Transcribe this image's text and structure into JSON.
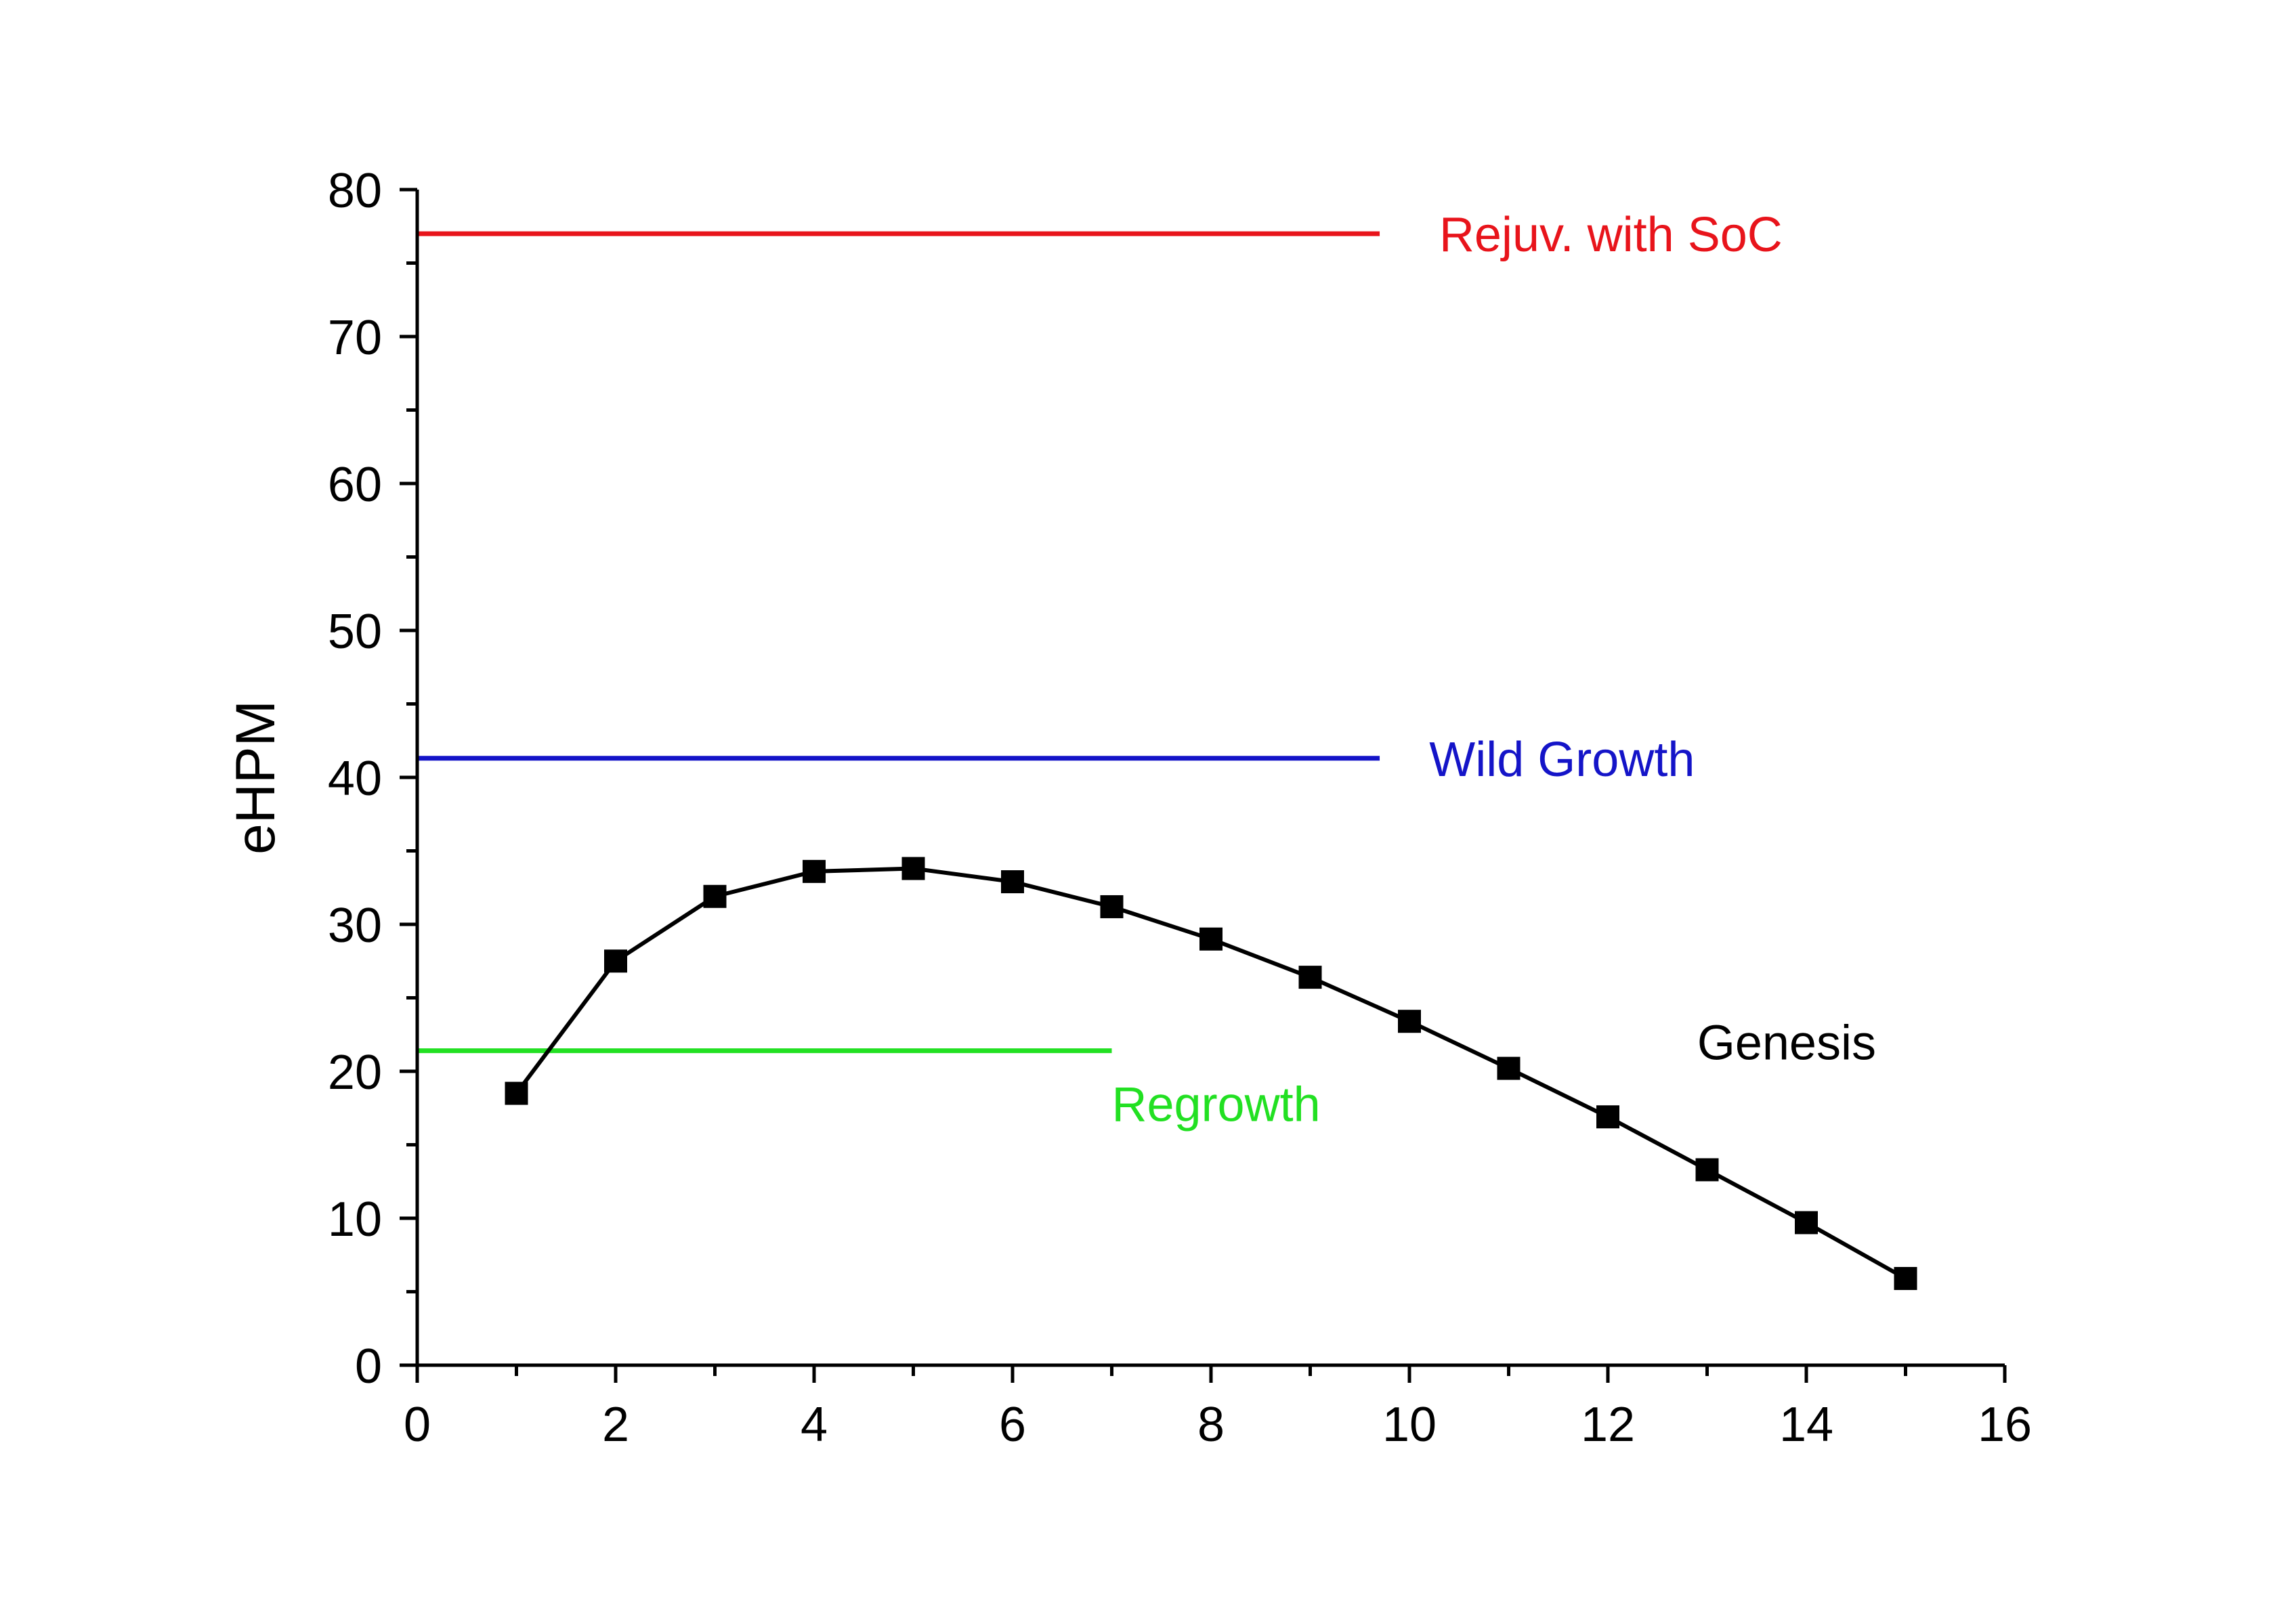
{
  "chart_data": {
    "type": "line",
    "title": "",
    "xlabel": "",
    "ylabel": "eHPM",
    "xlim": [
      0,
      16
    ],
    "ylim": [
      0,
      80
    ],
    "x_ticks": [
      0,
      2,
      4,
      6,
      8,
      10,
      12,
      14,
      16
    ],
    "y_ticks": [
      0,
      10,
      20,
      30,
      40,
      50,
      60,
      70,
      80
    ],
    "x_tick_labels": [
      "0",
      "2",
      "4",
      "6",
      "8",
      "10",
      "12",
      "14",
      "16"
    ],
    "y_tick_labels": [
      "0",
      "10",
      "20",
      "30",
      "40",
      "50",
      "60",
      "70",
      "80"
    ],
    "grid": false,
    "series": [
      {
        "name": "Genesis",
        "color": "#000000",
        "marker": "square",
        "x": [
          1,
          2,
          3,
          4,
          5,
          6,
          7,
          8,
          9,
          10,
          11,
          12,
          13,
          14,
          15
        ],
        "y": [
          18.5,
          27.5,
          31.9,
          33.6,
          33.8,
          32.9,
          31.2,
          29.0,
          26.4,
          23.4,
          20.2,
          16.9,
          13.3,
          9.7,
          5.9
        ]
      }
    ],
    "reference_lines": [
      {
        "name": "Rejuv. with SoC",
        "color": "#e8141b",
        "y": 77.0,
        "x_range": [
          0,
          9.7
        ]
      },
      {
        "name": "Wild Growth",
        "color": "#1414c8",
        "y": 41.3,
        "x_range": [
          0,
          9.7
        ]
      },
      {
        "name": "Regrowth",
        "color": "#22e022",
        "y": 21.4,
        "x_range": [
          0,
          7.0
        ]
      }
    ],
    "annotations": [
      {
        "text": "Rejuv. with SoC",
        "color": "#e8141b",
        "x": 10.3,
        "y": 77.0
      },
      {
        "text": "Wild Growth",
        "color": "#1414c8",
        "x": 10.2,
        "y": 41.3
      },
      {
        "text": "Genesis",
        "color": "#000000",
        "x": 12.9,
        "y": 22.0
      },
      {
        "text": "Regrowth",
        "color": "#22e022",
        "x": 7.0,
        "y": 17.8
      }
    ]
  }
}
